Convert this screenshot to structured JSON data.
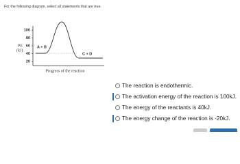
{
  "question": "For the following diagram, select all statements that are true.",
  "diagram": {
    "y_label": [
      "PE",
      "(kJ)"
    ],
    "yticks": [
      "100",
      "80",
      "60",
      "40",
      "20"
    ],
    "reactants": "A + B",
    "products": "C + D",
    "x_label": "Progress of the reaction"
  },
  "options": [
    "The reaction is endothermic.",
    "The activation energy of the reaction is 100kJ.",
    "The energy of the reactants is 40kJ.",
    "The energy change of the reaction is -20kJ."
  ]
}
